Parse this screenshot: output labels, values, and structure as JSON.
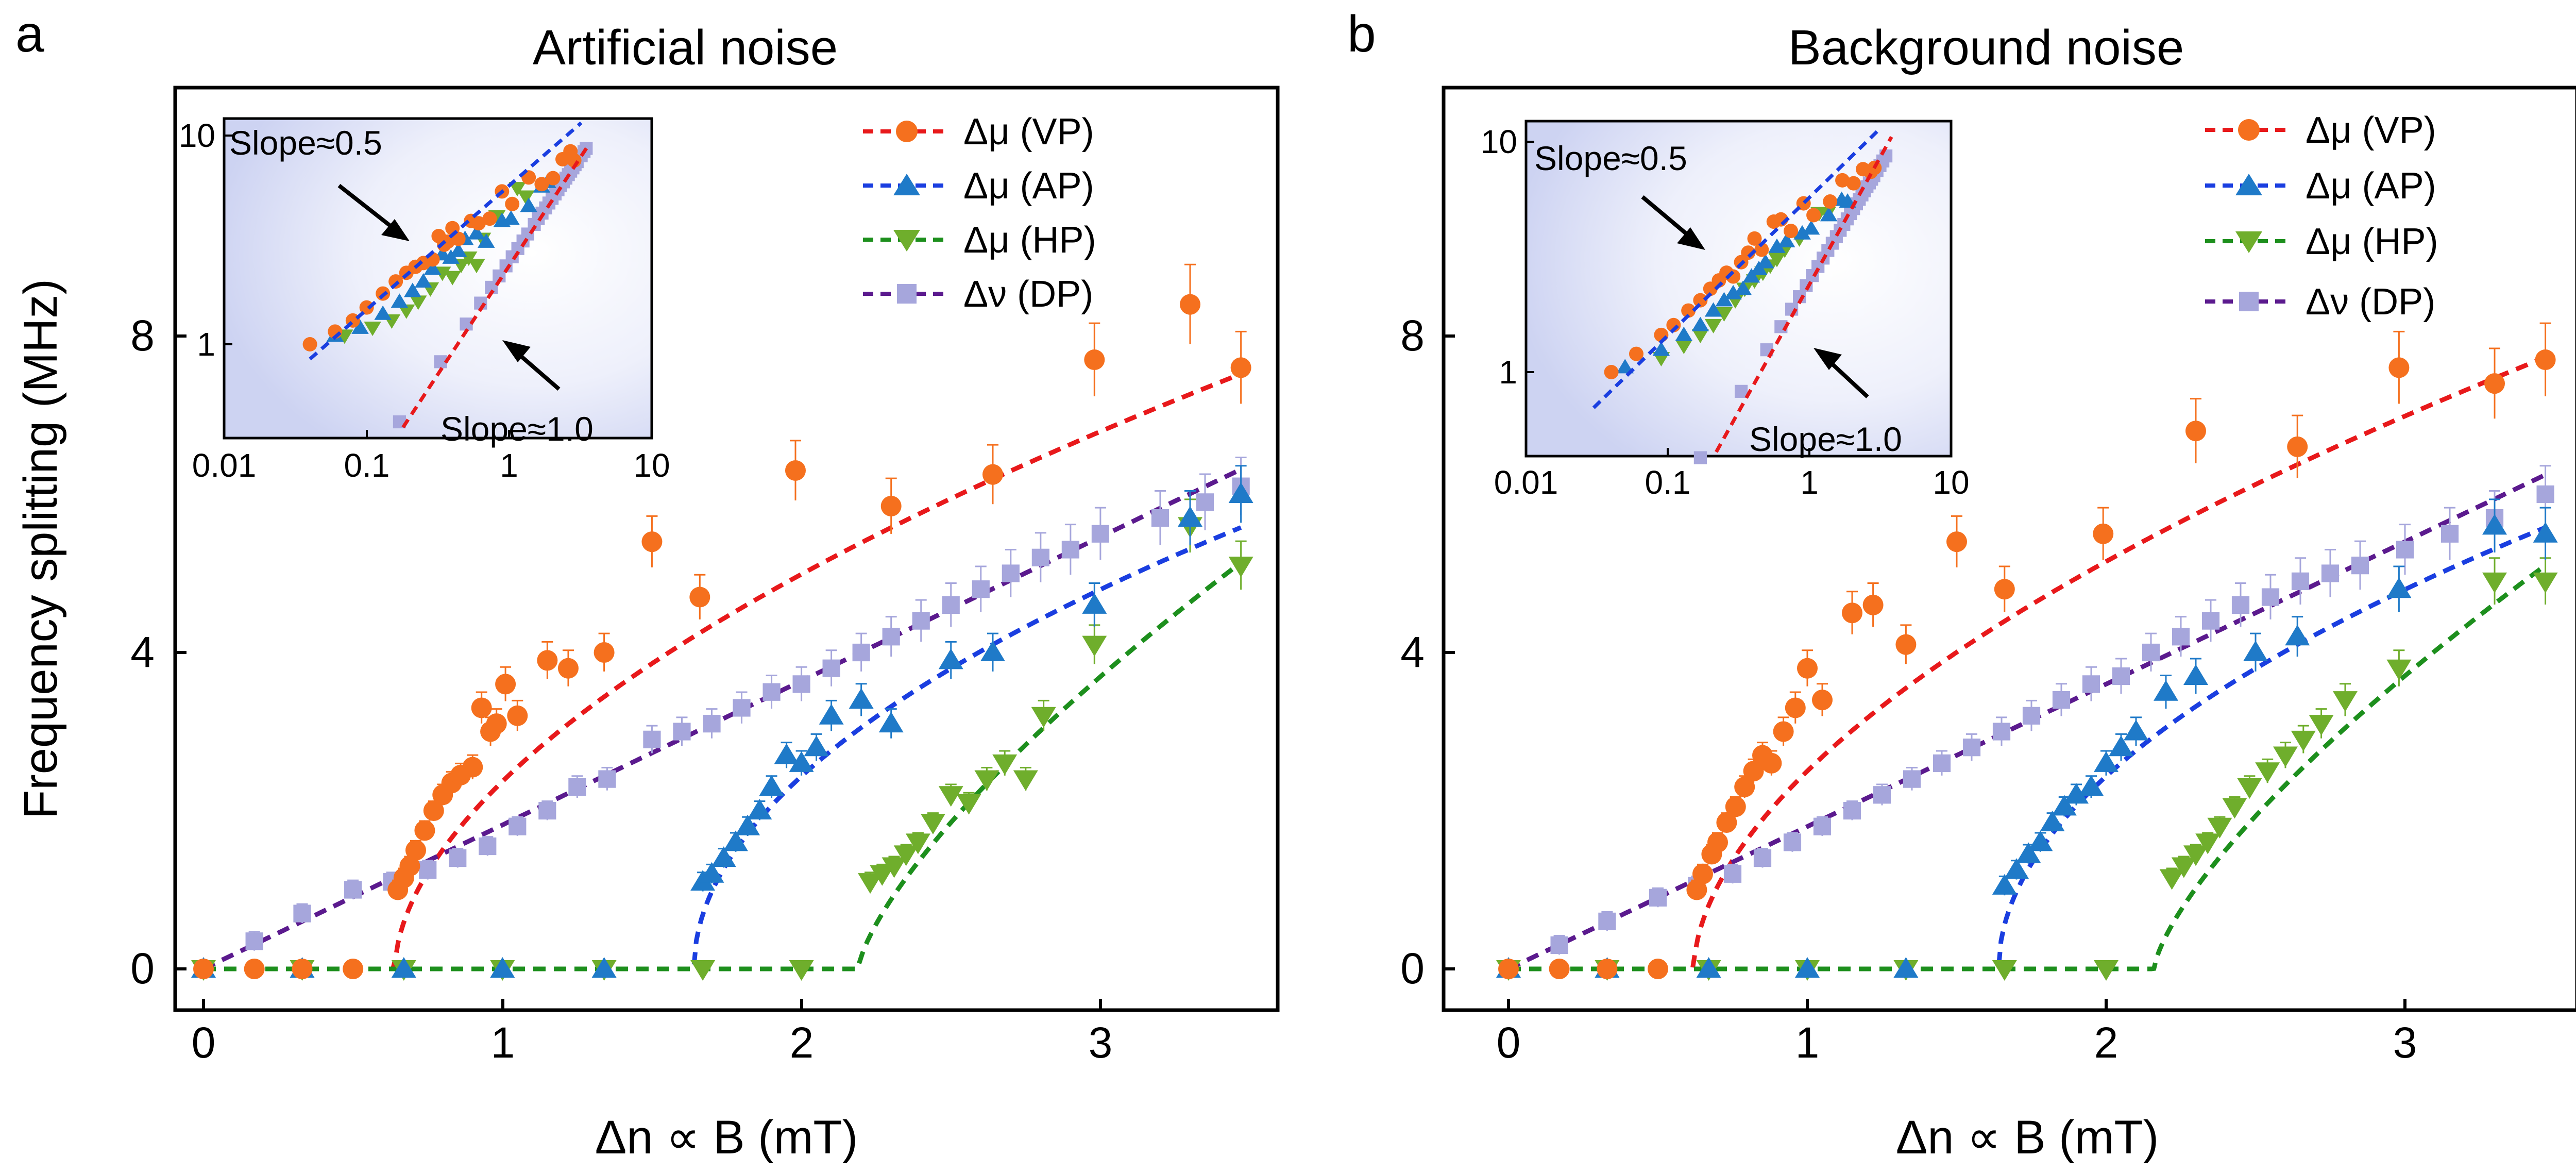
{
  "figure": {
    "axis_labels": {
      "y": "Frequency splitting (MHz)",
      "x": "Δn ∝ B (mT)"
    },
    "legend": [
      {
        "label": "Δμ (VP)",
        "color": "#e8191b",
        "marker_color": "#f5701e",
        "marker": "circle"
      },
      {
        "label": "Δμ (AP)",
        "color": "#1a3ee0",
        "marker_color": "#1f7ac8",
        "marker": "triangle-up"
      },
      {
        "label": "Δμ (HP)",
        "color": "#1d8f1d",
        "marker_color": "#6fae2c",
        "marker": "triangle-down"
      },
      {
        "label": "Δν (DP)",
        "color": "#5b1a8e",
        "marker_color": "#a6a6dc",
        "marker": "square"
      }
    ],
    "inset": {
      "x_ticks": [
        "0.01",
        "0.1",
        "1",
        "10"
      ],
      "y_ticks": [
        "1",
        "10"
      ],
      "annotation_upper": "Slope≈0.5",
      "annotation_lower": "Slope≈1.0"
    }
  },
  "chart_data": [
    {
      "type": "scatter",
      "panel_letter": "a",
      "title": "Artificial noise",
      "xlabel": "Δn ∝ B (mT)",
      "ylabel": "Frequency splitting (MHz)",
      "xlim": [
        -0.15,
        3.6
      ],
      "ylim": [
        -0.55,
        11.5
      ],
      "x_ticks": [
        0,
        1,
        2,
        3
      ],
      "y_ticks": [
        0,
        4,
        8
      ],
      "series": [
        {
          "name": "Δμ (VP)",
          "fit": {
            "x0": 0.64,
            "a": 4.2,
            "p": 0.56
          },
          "points": [
            [
              0.0,
              0
            ],
            [
              0.17,
              0
            ],
            [
              0.33,
              0
            ],
            [
              0.5,
              0
            ],
            [
              0.65,
              1.0
            ],
            [
              0.67,
              1.15
            ],
            [
              0.69,
              1.3
            ],
            [
              0.71,
              1.5
            ],
            [
              0.74,
              1.75
            ],
            [
              0.77,
              2.0
            ],
            [
              0.8,
              2.2
            ],
            [
              0.83,
              2.35
            ],
            [
              0.86,
              2.45
            ],
            [
              0.9,
              2.55
            ],
            [
              0.93,
              3.3
            ],
            [
              0.96,
              3.0
            ],
            [
              0.98,
              3.1
            ],
            [
              1.01,
              3.6
            ],
            [
              1.05,
              3.2
            ],
            [
              1.15,
              3.9
            ],
            [
              1.22,
              3.8
            ],
            [
              1.34,
              4.0
            ],
            [
              1.5,
              5.4
            ],
            [
              1.66,
              4.7
            ],
            [
              1.98,
              6.3
            ],
            [
              2.3,
              5.85
            ],
            [
              2.64,
              6.25
            ],
            [
              2.98,
              7.7
            ],
            [
              3.3,
              8.4
            ],
            [
              3.47,
              7.6
            ]
          ]
        },
        {
          "name": "Δμ (AP)",
          "fit": {
            "x0": 1.64,
            "a": 4.1,
            "p": 0.51
          },
          "points": [
            [
              0.0,
              0
            ],
            [
              0.33,
              0
            ],
            [
              0.67,
              0
            ],
            [
              1.0,
              0
            ],
            [
              1.34,
              0
            ],
            [
              1.67,
              1.1
            ],
            [
              1.7,
              1.2
            ],
            [
              1.74,
              1.4
            ],
            [
              1.78,
              1.6
            ],
            [
              1.82,
              1.8
            ],
            [
              1.86,
              2.0
            ],
            [
              1.9,
              2.3
            ],
            [
              1.95,
              2.7
            ],
            [
              2.0,
              2.6
            ],
            [
              2.05,
              2.8
            ],
            [
              2.1,
              3.2
            ],
            [
              2.2,
              3.4
            ],
            [
              2.3,
              3.1
            ],
            [
              2.5,
              3.9
            ],
            [
              2.64,
              4.0
            ],
            [
              2.98,
              4.6
            ],
            [
              3.3,
              5.7
            ],
            [
              3.47,
              6.0
            ]
          ]
        },
        {
          "name": "Δμ (HP)",
          "fit": {
            "x0": 2.19,
            "a": 4.3,
            "p": 0.72
          },
          "points": [
            [
              0.0,
              0
            ],
            [
              0.33,
              0
            ],
            [
              0.67,
              0
            ],
            [
              1.0,
              0
            ],
            [
              1.34,
              0
            ],
            [
              1.67,
              0
            ],
            [
              2.0,
              0
            ],
            [
              2.23,
              1.1
            ],
            [
              2.27,
              1.2
            ],
            [
              2.31,
              1.3
            ],
            [
              2.35,
              1.45
            ],
            [
              2.39,
              1.6
            ],
            [
              2.44,
              1.85
            ],
            [
              2.5,
              2.2
            ],
            [
              2.56,
              2.1
            ],
            [
              2.62,
              2.4
            ],
            [
              2.68,
              2.6
            ],
            [
              2.75,
              2.4
            ],
            [
              2.81,
              3.2
            ],
            [
              2.98,
              4.1
            ],
            [
              3.3,
              5.6
            ],
            [
              3.47,
              5.1
            ]
          ]
        },
        {
          "name": "Δν (DP)",
          "fit": {
            "k": 1.82
          },
          "points": [
            [
              0.0,
              0
            ],
            [
              0.17,
              0.35
            ],
            [
              0.33,
              0.7
            ],
            [
              0.5,
              1.0
            ],
            [
              0.63,
              1.1
            ],
            [
              0.75,
              1.25
            ],
            [
              0.85,
              1.4
            ],
            [
              0.95,
              1.55
            ],
            [
              1.05,
              1.8
            ],
            [
              1.15,
              2.0
            ],
            [
              1.25,
              2.3
            ],
            [
              1.35,
              2.4
            ],
            [
              1.5,
              2.9
            ],
            [
              1.6,
              3.0
            ],
            [
              1.7,
              3.1
            ],
            [
              1.8,
              3.3
            ],
            [
              1.9,
              3.5
            ],
            [
              2.0,
              3.6
            ],
            [
              2.1,
              3.8
            ],
            [
              2.2,
              4.0
            ],
            [
              2.3,
              4.2
            ],
            [
              2.4,
              4.4
            ],
            [
              2.5,
              4.6
            ],
            [
              2.6,
              4.8
            ],
            [
              2.7,
              5.0
            ],
            [
              2.8,
              5.2
            ],
            [
              2.9,
              5.3
            ],
            [
              3.0,
              5.5
            ],
            [
              3.2,
              5.7
            ],
            [
              3.35,
              5.9
            ],
            [
              3.47,
              6.1
            ]
          ]
        }
      ],
      "inset": {
        "xlim_log": [
          0.01,
          10
        ],
        "ylim_log": [
          0.4,
          13
        ],
        "lines": [
          {
            "name": "VP/AP fit (slope 0.5)",
            "x": [
              0.04,
              3.2
            ],
            "y": [
              0.85,
              11.5
            ],
            "color": "#1a3ee0"
          },
          {
            "name": "DP fit (slope 1.0)",
            "x": [
              0.18,
              3.6
            ],
            "y": [
              0.4,
              9.0
            ],
            "color": "#e8191b"
          }
        ]
      }
    },
    {
      "type": "scatter",
      "panel_letter": "b",
      "title": "Background noise",
      "xlabel": "Δn ∝ B (mT)",
      "ylabel": "Frequency splitting (MHz)",
      "xlim": [
        -0.15,
        3.6
      ],
      "ylim": [
        -0.55,
        11.5
      ],
      "x_ticks": [
        0,
        1,
        2,
        3
      ],
      "y_ticks": [
        0,
        4,
        8
      ],
      "series": [
        {
          "name": "Δμ (VP)",
          "fit": {
            "x0": 0.62,
            "a": 4.3,
            "p": 0.56
          },
          "points": [
            [
              0.0,
              0
            ],
            [
              0.17,
              0
            ],
            [
              0.33,
              0
            ],
            [
              0.5,
              0
            ],
            [
              0.63,
              1.0
            ],
            [
              0.65,
              1.2
            ],
            [
              0.68,
              1.45
            ],
            [
              0.7,
              1.6
            ],
            [
              0.73,
              1.85
            ],
            [
              0.76,
              2.05
            ],
            [
              0.79,
              2.3
            ],
            [
              0.82,
              2.5
            ],
            [
              0.85,
              2.7
            ],
            [
              0.88,
              2.6
            ],
            [
              0.92,
              3.0
            ],
            [
              0.96,
              3.3
            ],
            [
              1.0,
              3.8
            ],
            [
              1.05,
              3.4
            ],
            [
              1.15,
              4.5
            ],
            [
              1.22,
              4.6
            ],
            [
              1.33,
              4.1
            ],
            [
              1.5,
              5.4
            ],
            [
              1.66,
              4.8
            ],
            [
              1.99,
              5.5
            ],
            [
              2.3,
              6.8
            ],
            [
              2.64,
              6.6
            ],
            [
              2.98,
              7.6
            ],
            [
              3.3,
              7.4
            ],
            [
              3.47,
              7.7
            ]
          ]
        },
        {
          "name": "Δμ (AP)",
          "fit": {
            "x0": 1.64,
            "a": 4.1,
            "p": 0.51
          },
          "points": [
            [
              0.0,
              0
            ],
            [
              0.33,
              0
            ],
            [
              0.67,
              0
            ],
            [
              1.0,
              0
            ],
            [
              1.33,
              0
            ],
            [
              1.66,
              1.05
            ],
            [
              1.7,
              1.25
            ],
            [
              1.74,
              1.45
            ],
            [
              1.78,
              1.6
            ],
            [
              1.82,
              1.85
            ],
            [
              1.86,
              2.05
            ],
            [
              1.9,
              2.2
            ],
            [
              1.95,
              2.3
            ],
            [
              2.0,
              2.6
            ],
            [
              2.05,
              2.8
            ],
            [
              2.1,
              3.0
            ],
            [
              2.2,
              3.5
            ],
            [
              2.3,
              3.7
            ],
            [
              2.5,
              4.0
            ],
            [
              2.64,
              4.2
            ],
            [
              2.98,
              4.8
            ],
            [
              3.3,
              5.6
            ],
            [
              3.47,
              5.5
            ]
          ]
        },
        {
          "name": "Δμ (HP)",
          "fit": {
            "x0": 2.16,
            "a": 4.2,
            "p": 0.72
          },
          "points": [
            [
              0.0,
              0
            ],
            [
              0.33,
              0
            ],
            [
              0.67,
              0
            ],
            [
              1.0,
              0
            ],
            [
              1.33,
              0
            ],
            [
              1.66,
              0
            ],
            [
              2.0,
              0
            ],
            [
              2.22,
              1.15
            ],
            [
              2.26,
              1.3
            ],
            [
              2.3,
              1.45
            ],
            [
              2.34,
              1.6
            ],
            [
              2.38,
              1.8
            ],
            [
              2.43,
              2.05
            ],
            [
              2.48,
              2.3
            ],
            [
              2.54,
              2.5
            ],
            [
              2.6,
              2.7
            ],
            [
              2.66,
              2.9
            ],
            [
              2.72,
              3.1
            ],
            [
              2.8,
              3.4
            ],
            [
              2.98,
              3.8
            ],
            [
              3.3,
              4.9
            ],
            [
              3.47,
              4.9
            ]
          ]
        },
        {
          "name": "Δν (DP)",
          "fit": {
            "k": 1.8
          },
          "points": [
            [
              0.0,
              0
            ],
            [
              0.17,
              0.3
            ],
            [
              0.33,
              0.6
            ],
            [
              0.5,
              0.9
            ],
            [
              0.63,
              1.05
            ],
            [
              0.75,
              1.2
            ],
            [
              0.85,
              1.4
            ],
            [
              0.95,
              1.6
            ],
            [
              1.05,
              1.8
            ],
            [
              1.15,
              2.0
            ],
            [
              1.25,
              2.2
            ],
            [
              1.35,
              2.4
            ],
            [
              1.45,
              2.6
            ],
            [
              1.55,
              2.8
            ],
            [
              1.65,
              3.0
            ],
            [
              1.75,
              3.2
            ],
            [
              1.85,
              3.4
            ],
            [
              1.95,
              3.6
            ],
            [
              2.05,
              3.7
            ],
            [
              2.15,
              4.0
            ],
            [
              2.25,
              4.2
            ],
            [
              2.35,
              4.4
            ],
            [
              2.45,
              4.6
            ],
            [
              2.55,
              4.7
            ],
            [
              2.65,
              4.9
            ],
            [
              2.75,
              5.0
            ],
            [
              2.85,
              5.1
            ],
            [
              3.0,
              5.3
            ],
            [
              3.15,
              5.5
            ],
            [
              3.3,
              5.7
            ],
            [
              3.47,
              6.0
            ]
          ]
        }
      ],
      "inset": {
        "xlim_log": [
          0.01,
          10
        ],
        "ylim_log": [
          0.4,
          13
        ],
        "lines": [
          {
            "name": "VP/AP fit (slope 0.5)",
            "x": [
              0.03,
              3.2
            ],
            "y": [
              0.7,
              11.5
            ],
            "color": "#1a3ee0"
          },
          {
            "name": "DP fit (slope 1.0)",
            "x": [
              0.22,
              3.8
            ],
            "y": [
              0.45,
              10.5
            ],
            "color": "#e8191b"
          }
        ]
      }
    }
  ]
}
